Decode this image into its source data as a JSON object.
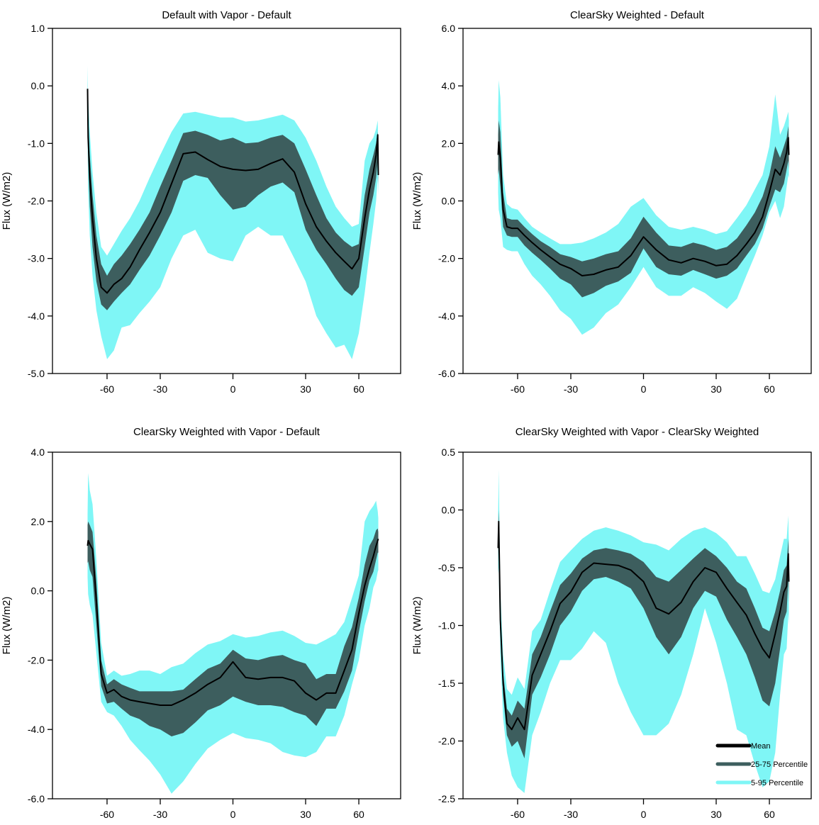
{
  "colors": {
    "mean": "#000000",
    "band_25_75": "#3D5E5E",
    "band_5_95": "#7FF6F6",
    "frame": "#000000",
    "background": "#FFFFFF"
  },
  "legend": {
    "items": [
      {
        "label": "Mean",
        "color_key": "mean"
      },
      {
        "label": "25-75 Percentile",
        "color_key": "band_25_75"
      },
      {
        "label": "5-95 Percentile",
        "color_key": "band_5_95"
      }
    ]
  },
  "chart_data": [
    {
      "type": "area",
      "title": "Default with Vapor - Default",
      "ylabel": "Flux (W/m2)",
      "xlabel": "",
      "ylim": [
        -5.0,
        1.0
      ],
      "ytick_step": 1.0,
      "x_axis": "latitude (sine scale)",
      "xticks": [
        -60,
        -30,
        0,
        30,
        60
      ],
      "xtick_labels": [
        "-60",
        "-30",
        "0",
        "30",
        "60"
      ],
      "lat": [
        -90,
        -85,
        -80,
        -75,
        -70,
        -65,
        -60,
        -55,
        -50,
        -45,
        -40,
        -35,
        -30,
        -25,
        -20,
        -15,
        -10,
        -5,
        0,
        5,
        10,
        15,
        20,
        25,
        30,
        35,
        40,
        45,
        50,
        55,
        60,
        65,
        70,
        75,
        80,
        85,
        90
      ],
      "series": [
        {
          "name": "Mean",
          "values": [
            -0.05,
            -0.9,
            -1.6,
            -2.3,
            -3.0,
            -3.5,
            -3.6,
            -3.45,
            -3.35,
            -3.15,
            -2.85,
            -2.55,
            -2.2,
            -1.7,
            -1.18,
            -1.15,
            -1.28,
            -1.4,
            -1.45,
            -1.47,
            -1.45,
            -1.35,
            -1.27,
            -1.5,
            -2.05,
            -2.45,
            -2.7,
            -2.9,
            -3.05,
            -3.18,
            -3.0,
            -2.3,
            -1.8,
            -1.5,
            -1.2,
            -0.85,
            -1.55
          ]
        },
        {
          "name": "p25",
          "values": [
            -0.5,
            -1.3,
            -2.1,
            -2.8,
            -3.4,
            -3.8,
            -3.9,
            -3.75,
            -3.6,
            -3.45,
            -3.2,
            -2.95,
            -2.6,
            -2.2,
            -1.65,
            -1.55,
            -1.6,
            -1.9,
            -2.15,
            -2.1,
            -1.9,
            -1.75,
            -1.68,
            -1.85,
            -2.5,
            -2.85,
            -3.1,
            -3.35,
            -3.55,
            -3.65,
            -3.5,
            -2.8,
            -2.2,
            -1.9,
            -1.6,
            -1.3,
            -1.7
          ]
        },
        {
          "name": "p75",
          "values": [
            -0.02,
            -0.5,
            -1.2,
            -1.9,
            -2.6,
            -3.1,
            -3.3,
            -3.1,
            -2.95,
            -2.75,
            -2.5,
            -2.2,
            -1.75,
            -1.3,
            -0.82,
            -0.78,
            -0.85,
            -0.95,
            -0.9,
            -1.0,
            -0.98,
            -0.9,
            -0.85,
            -1.0,
            -1.45,
            -1.9,
            -2.3,
            -2.55,
            -2.7,
            -2.8,
            -2.75,
            -1.9,
            -1.45,
            -1.2,
            -1.0,
            -0.8,
            -1.3
          ]
        },
        {
          "name": "p5",
          "values": [
            -0.9,
            -1.8,
            -2.6,
            -3.3,
            -3.9,
            -4.35,
            -4.75,
            -4.6,
            -4.2,
            -4.16,
            -3.95,
            -3.75,
            -3.5,
            -3.0,
            -2.6,
            -2.5,
            -2.9,
            -3.0,
            -3.05,
            -2.6,
            -2.45,
            -2.6,
            -2.6,
            -3.0,
            -3.4,
            -4.0,
            -4.3,
            -4.55,
            -4.5,
            -4.75,
            -4.3,
            -3.6,
            -2.9,
            -2.4,
            -2.0,
            -1.6,
            -1.9
          ]
        },
        {
          "name": "p95",
          "values": [
            0.35,
            -0.2,
            -0.8,
            -1.5,
            -2.2,
            -2.8,
            -2.95,
            -2.75,
            -2.52,
            -2.3,
            -2.0,
            -1.6,
            -1.2,
            -0.8,
            -0.48,
            -0.45,
            -0.5,
            -0.55,
            -0.55,
            -0.62,
            -0.6,
            -0.55,
            -0.5,
            -0.6,
            -0.9,
            -1.3,
            -1.75,
            -2.1,
            -2.3,
            -2.45,
            -2.4,
            -1.3,
            -1.0,
            -0.9,
            -0.75,
            -0.6,
            -1.2
          ]
        }
      ]
    },
    {
      "type": "area",
      "title": "ClearSky Weighted - Default",
      "ylabel": "Flux (W/m2)",
      "xlabel": "",
      "ylim": [
        -6.0,
        6.0
      ],
      "ytick_step": 2.0,
      "x_axis": "latitude (sine scale)",
      "xticks": [
        -60,
        -30,
        0,
        30,
        60
      ],
      "xtick_labels": [
        "-60",
        "-30",
        "0",
        "30",
        "60"
      ],
      "lat": [
        -90,
        -85,
        -80,
        -75,
        -70,
        -65,
        -60,
        -55,
        -50,
        -45,
        -40,
        -35,
        -30,
        -25,
        -20,
        -15,
        -10,
        -5,
        0,
        5,
        10,
        15,
        20,
        25,
        30,
        35,
        40,
        45,
        50,
        55,
        60,
        65,
        70,
        75,
        80,
        85,
        90
      ],
      "series": [
        {
          "name": "Mean",
          "values": [
            1.6,
            2.05,
            1.5,
            -0.3,
            -0.9,
            -0.95,
            -0.95,
            -1.2,
            -1.45,
            -1.7,
            -1.95,
            -2.2,
            -2.35,
            -2.6,
            -2.55,
            -2.4,
            -2.3,
            -1.9,
            -1.25,
            -1.7,
            -2.05,
            -2.15,
            -2.0,
            -2.1,
            -2.25,
            -2.2,
            -1.9,
            -1.5,
            -1.1,
            -0.55,
            0.3,
            1.1,
            0.9,
            1.3,
            1.7,
            2.2,
            1.6
          ]
        },
        {
          "name": "p25",
          "values": [
            0.9,
            1.1,
            0.5,
            -0.9,
            -1.2,
            -1.25,
            -1.25,
            -1.55,
            -1.8,
            -2.05,
            -2.35,
            -2.7,
            -2.9,
            -3.35,
            -3.2,
            -2.95,
            -2.8,
            -2.5,
            -1.65,
            -2.3,
            -2.55,
            -2.6,
            -2.4,
            -2.55,
            -2.7,
            -2.6,
            -2.35,
            -1.9,
            -1.5,
            -0.95,
            -0.2,
            0.4,
            0.3,
            0.6,
            1.1,
            1.4,
            1.1
          ]
        },
        {
          "name": "p75",
          "values": [
            2.3,
            2.8,
            2.4,
            0.3,
            -0.6,
            -0.65,
            -0.65,
            -0.9,
            -1.15,
            -1.4,
            -1.6,
            -1.85,
            -1.95,
            -2.1,
            -2.0,
            -1.85,
            -1.75,
            -1.3,
            -0.55,
            -1.1,
            -1.55,
            -1.6,
            -1.45,
            -1.55,
            -1.7,
            -1.6,
            -1.3,
            -0.85,
            -0.4,
            0.15,
            0.9,
            1.9,
            1.5,
            1.9,
            2.2,
            2.6,
            2.1
          ]
        },
        {
          "name": "p5",
          "values": [
            0.3,
            -0.3,
            -0.6,
            -1.6,
            -1.7,
            -1.75,
            -1.75,
            -2.2,
            -2.6,
            -2.9,
            -3.3,
            -3.8,
            -4.1,
            -4.65,
            -4.4,
            -3.9,
            -3.6,
            -3.0,
            -2.3,
            -3.0,
            -3.3,
            -3.3,
            -3.0,
            -3.2,
            -3.5,
            -3.75,
            -3.4,
            -2.6,
            -1.9,
            -1.2,
            -0.4,
            0.0,
            -0.6,
            -0.2,
            0.5,
            0.9,
            0.8
          ]
        },
        {
          "name": "p95",
          "values": [
            3.2,
            4.2,
            3.6,
            0.9,
            -0.1,
            -0.25,
            -0.3,
            -0.6,
            -0.9,
            -1.1,
            -1.3,
            -1.5,
            -1.5,
            -1.45,
            -1.3,
            -1.1,
            -0.8,
            -0.2,
            0.1,
            -0.5,
            -0.9,
            -1.0,
            -0.9,
            -1.0,
            -1.15,
            -1.05,
            -0.6,
            -0.15,
            0.4,
            0.9,
            1.9,
            3.7,
            2.3,
            2.6,
            2.9,
            3.1,
            2.8
          ]
        }
      ]
    },
    {
      "type": "area",
      "title": "ClearSky Weighted with Vapor - Default",
      "ylabel": "Flux (W/m2)",
      "xlabel": "",
      "ylim": [
        -6.0,
        4.0
      ],
      "ytick_step": 2.0,
      "x_axis": "latitude (sine scale)",
      "xticks": [
        -60,
        -30,
        0,
        30,
        60
      ],
      "xtick_labels": [
        "-60",
        "-30",
        "0",
        "30",
        "60"
      ],
      "lat": [
        -90,
        -85,
        -80,
        -75,
        -70,
        -65,
        -60,
        -55,
        -50,
        -45,
        -40,
        -35,
        -30,
        -25,
        -20,
        -15,
        -10,
        -5,
        0,
        5,
        10,
        15,
        20,
        25,
        30,
        35,
        40,
        45,
        50,
        55,
        60,
        65,
        70,
        75,
        80,
        85,
        90
      ],
      "series": [
        {
          "name": "Mean",
          "values": [
            1.3,
            1.45,
            1.35,
            1.2,
            -0.3,
            -2.4,
            -2.95,
            -2.85,
            -3.05,
            -3.15,
            -3.2,
            -3.25,
            -3.3,
            -3.3,
            -3.15,
            -2.95,
            -2.7,
            -2.5,
            -2.05,
            -2.5,
            -2.55,
            -2.5,
            -2.5,
            -2.6,
            -2.95,
            -3.15,
            -2.95,
            -2.95,
            -2.3,
            -1.7,
            -0.65,
            0.15,
            0.65,
            1.0,
            1.3,
            1.45,
            1.5
          ]
        },
        {
          "name": "p25",
          "values": [
            0.8,
            0.85,
            0.6,
            0.4,
            -1.0,
            -2.75,
            -3.25,
            -3.2,
            -3.4,
            -3.6,
            -3.7,
            -3.9,
            -4.0,
            -4.2,
            -4.1,
            -3.8,
            -3.45,
            -3.3,
            -3.05,
            -3.2,
            -3.3,
            -3.3,
            -3.35,
            -3.5,
            -3.6,
            -3.9,
            -3.4,
            -3.4,
            -2.9,
            -2.3,
            -1.2,
            -0.3,
            0.3,
            0.55,
            0.9,
            1.1,
            1.1
          ]
        },
        {
          "name": "p75",
          "values": [
            1.9,
            2.0,
            1.9,
            1.7,
            0.3,
            -2.0,
            -2.7,
            -2.55,
            -2.7,
            -2.8,
            -2.9,
            -2.9,
            -2.9,
            -2.9,
            -2.85,
            -2.55,
            -2.25,
            -2.1,
            -1.7,
            -1.95,
            -2.0,
            -1.9,
            -1.85,
            -2.0,
            -2.1,
            -2.55,
            -2.4,
            -2.4,
            -1.6,
            -1.05,
            -0.2,
            0.75,
            1.3,
            1.5,
            1.75,
            1.8,
            1.7
          ]
        },
        {
          "name": "p5",
          "values": [
            0.4,
            -0.1,
            -0.4,
            -0.7,
            -1.8,
            -3.2,
            -3.5,
            -3.6,
            -3.9,
            -4.3,
            -4.6,
            -4.9,
            -5.3,
            -5.85,
            -5.5,
            -5.0,
            -4.55,
            -4.3,
            -4.1,
            -4.25,
            -4.3,
            -4.4,
            -4.65,
            -4.75,
            -4.8,
            -4.65,
            -4.2,
            -4.2,
            -3.6,
            -2.7,
            -2.0,
            -1.0,
            -0.5,
            0.1,
            0.3,
            0.55,
            0.6
          ]
        },
        {
          "name": "p95",
          "values": [
            2.2,
            3.4,
            2.9,
            2.5,
            0.9,
            -1.5,
            -2.45,
            -2.3,
            -2.45,
            -2.4,
            -2.3,
            -2.3,
            -2.4,
            -2.2,
            -2.1,
            -1.8,
            -1.55,
            -1.45,
            -1.25,
            -1.35,
            -1.3,
            -1.2,
            -1.15,
            -1.3,
            -1.5,
            -1.55,
            -1.4,
            -1.25,
            -0.9,
            -0.2,
            0.45,
            2.0,
            2.3,
            2.45,
            2.6,
            2.3,
            2.1
          ]
        }
      ]
    },
    {
      "type": "area",
      "title": "ClearSky Weighted with Vapor - ClearSky Weighted",
      "ylabel": "Flux (W/m2)",
      "xlabel": "",
      "ylim": [
        -2.5,
        0.5
      ],
      "ytick_step": 0.5,
      "x_axis": "latitude (sine scale)",
      "xticks": [
        -60,
        -30,
        0,
        30,
        60
      ],
      "xtick_labels": [
        "-60",
        "-30",
        "0",
        "30",
        "60"
      ],
      "lat": [
        -90,
        -85,
        -80,
        -75,
        -70,
        -65,
        -60,
        -55,
        -50,
        -45,
        -40,
        -35,
        -30,
        -25,
        -20,
        -15,
        -10,
        -5,
        0,
        5,
        10,
        15,
        20,
        25,
        30,
        35,
        40,
        45,
        50,
        55,
        60,
        65,
        70,
        75,
        80,
        85,
        90
      ],
      "series": [
        {
          "name": "Mean",
          "values": [
            -0.33,
            -0.1,
            -0.95,
            -1.5,
            -1.85,
            -1.9,
            -1.8,
            -1.9,
            -1.43,
            -1.25,
            -1.05,
            -0.81,
            -0.71,
            -0.54,
            -0.46,
            -0.47,
            -0.48,
            -0.52,
            -0.62,
            -0.85,
            -0.9,
            -0.8,
            -0.62,
            -0.5,
            -0.54,
            -0.68,
            -0.8,
            -0.91,
            -1.07,
            -1.2,
            -1.28,
            -1.07,
            -0.88,
            -0.71,
            -0.66,
            -0.38,
            -0.62
          ]
        },
        {
          "name": "p25",
          "values": [
            -0.45,
            -0.2,
            -1.05,
            -1.6,
            -1.95,
            -2.05,
            -2.0,
            -2.15,
            -1.6,
            -1.45,
            -1.25,
            -1.0,
            -0.88,
            -0.7,
            -0.6,
            -0.58,
            -0.62,
            -0.68,
            -0.85,
            -1.1,
            -1.25,
            -1.1,
            -0.85,
            -0.7,
            -0.75,
            -0.95,
            -1.1,
            -1.25,
            -1.45,
            -1.65,
            -1.7,
            -1.5,
            -1.2,
            -0.95,
            -0.88,
            -0.6,
            -0.8
          ]
        },
        {
          "name": "p75",
          "values": [
            -0.2,
            0.0,
            -0.85,
            -1.4,
            -1.72,
            -1.78,
            -1.65,
            -1.72,
            -1.25,
            -1.1,
            -0.88,
            -0.65,
            -0.55,
            -0.42,
            -0.35,
            -0.33,
            -0.35,
            -0.38,
            -0.45,
            -0.58,
            -0.62,
            -0.52,
            -0.42,
            -0.33,
            -0.4,
            -0.5,
            -0.62,
            -0.68,
            -0.85,
            -1.02,
            -1.05,
            -0.88,
            -0.7,
            -0.52,
            -0.48,
            -0.25,
            -0.45
          ]
        },
        {
          "name": "p5",
          "values": [
            -0.55,
            -0.5,
            -1.25,
            -1.8,
            -2.1,
            -2.3,
            -2.4,
            -2.45,
            -1.95,
            -1.75,
            -1.5,
            -1.3,
            -1.3,
            -1.2,
            -1.05,
            -1.15,
            -1.5,
            -1.75,
            -1.95,
            -1.95,
            -1.85,
            -1.6,
            -1.25,
            -0.85,
            -1.15,
            -1.5,
            -1.9,
            -1.95,
            -2.2,
            -2.4,
            -2.35,
            -2.1,
            -1.6,
            -1.25,
            -1.2,
            -0.9,
            -1.0
          ]
        },
        {
          "name": "p95",
          "values": [
            -0.05,
            0.35,
            -0.7,
            -1.25,
            -1.55,
            -1.6,
            -1.45,
            -1.55,
            -1.05,
            -0.95,
            -0.7,
            -0.45,
            -0.35,
            -0.25,
            -0.18,
            -0.15,
            -0.18,
            -0.22,
            -0.28,
            -0.3,
            -0.35,
            -0.25,
            -0.18,
            -0.15,
            -0.2,
            -0.28,
            -0.4,
            -0.4,
            -0.55,
            -0.7,
            -0.72,
            -0.6,
            -0.4,
            -0.25,
            -0.25,
            -0.05,
            -0.3
          ]
        }
      ]
    }
  ]
}
